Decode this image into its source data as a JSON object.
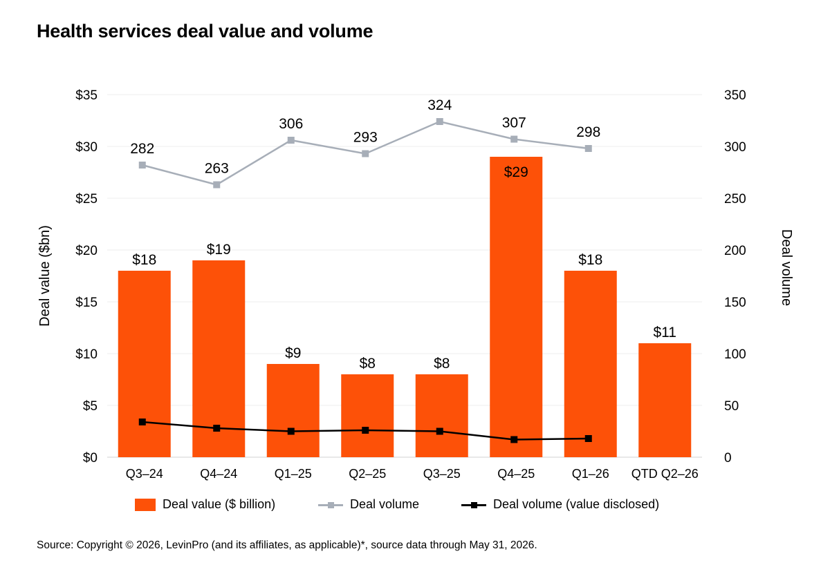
{
  "title": "Health services deal value and volume",
  "source": "Source: Copyright © 2026, LevinPro (and its affiliates, as applicable)*, source data through May 31, 2026.",
  "colors": {
    "bar": "#fd5108",
    "deal_volume": "#a7aeb8",
    "deal_volume_disclosed": "#000000",
    "grid": "#ececec"
  },
  "chart_data": {
    "type": "bar",
    "categories": [
      "Q3–24",
      "Q4–24",
      "Q1–25",
      "Q2–25",
      "Q3–25",
      "Q4–25",
      "Q1–26",
      "QTD Q2–26"
    ],
    "y_left": {
      "label": "Deal value ($bn)",
      "range": [
        0,
        35
      ],
      "ticks": [
        0,
        5,
        10,
        15,
        20,
        25,
        30,
        35
      ],
      "tick_labels": [
        "$0",
        "$5",
        "$10",
        "$15",
        "$20",
        "$25",
        "$30",
        "$35"
      ]
    },
    "y_right": {
      "label": "Deal volume",
      "range": [
        0,
        350
      ],
      "ticks": [
        0,
        50,
        100,
        150,
        200,
        250,
        300,
        350
      ],
      "tick_labels": [
        "0",
        "50",
        "100",
        "150",
        "200",
        "250",
        "300",
        "350"
      ]
    },
    "grid": true,
    "legend_position": "bottom",
    "series": [
      {
        "name": "Deal value ($ billion)",
        "type": "bar",
        "axis": "left",
        "values": [
          18,
          19,
          9,
          8,
          8,
          29,
          18,
          11
        ],
        "data_labels": [
          "$18",
          "$19",
          "$9",
          "$8",
          "$8",
          "$29",
          "$18",
          "$11"
        ]
      },
      {
        "name": "Deal volume",
        "type": "line",
        "axis": "right",
        "values": [
          282,
          263,
          306,
          293,
          324,
          307,
          298,
          null
        ],
        "data_labels": [
          "282",
          "263",
          "306",
          "293",
          "324",
          "307",
          "298",
          null
        ]
      },
      {
        "name": "Deal volume (value disclosed)",
        "type": "line",
        "axis": "right",
        "values": [
          34,
          28,
          25,
          26,
          25,
          17,
          18,
          null
        ]
      }
    ]
  }
}
